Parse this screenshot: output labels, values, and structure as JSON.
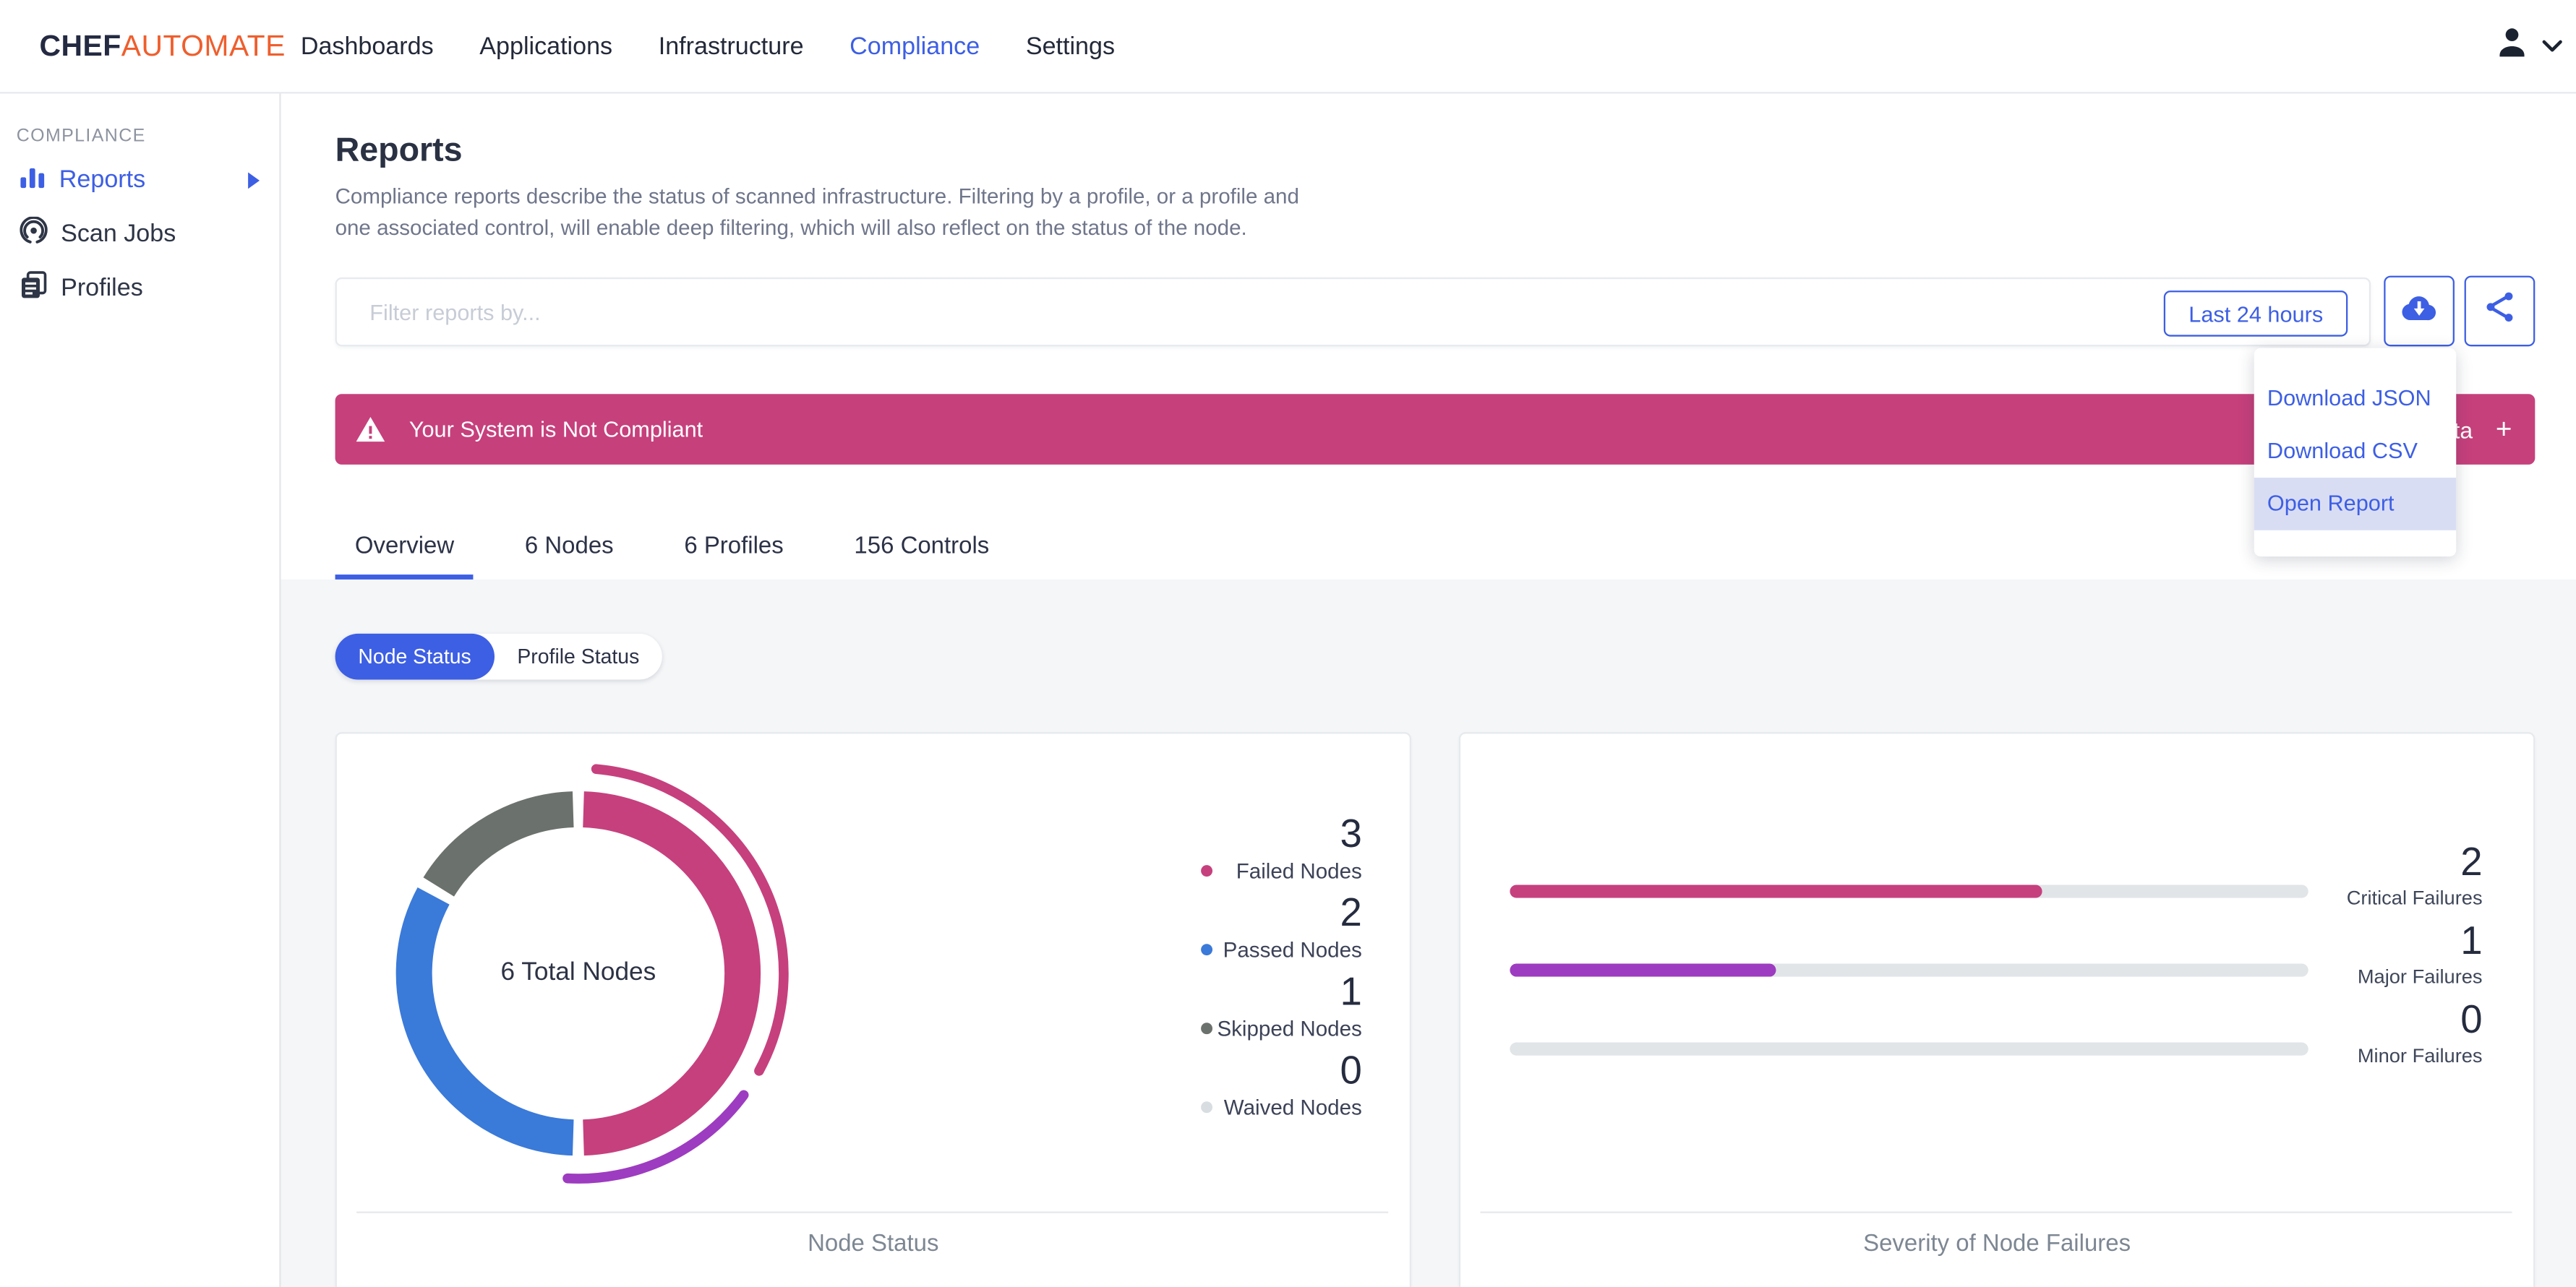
{
  "app": {
    "brand_primary": "CHEF",
    "brand_secondary": "AUTOMATE"
  },
  "nav": {
    "items": [
      {
        "label": "Dashboards",
        "active": false
      },
      {
        "label": "Applications",
        "active": false
      },
      {
        "label": "Infrastructure",
        "active": false
      },
      {
        "label": "Compliance",
        "active": true
      },
      {
        "label": "Settings",
        "active": false
      }
    ]
  },
  "sidebar": {
    "section_label": "COMPLIANCE",
    "items": [
      {
        "label": "Reports",
        "active": true
      },
      {
        "label": "Scan Jobs",
        "active": false
      },
      {
        "label": "Profiles",
        "active": false
      }
    ]
  },
  "page": {
    "title": "Reports",
    "description_line1": "Compliance reports describe the status of scanned infrastructure. Filtering by a profile, or a profile and",
    "description_line2": "one associated control, will enable deep filtering, which will also reflect on the status of the node."
  },
  "filter": {
    "placeholder": "Filter reports by...",
    "time_range_label": "Last 24 hours"
  },
  "banner": {
    "message": "Your System is Not Compliant",
    "right_fragment": "ta",
    "expand_glyph": "+"
  },
  "download_menu": {
    "items": [
      {
        "label": "Download JSON",
        "active": false
      },
      {
        "label": "Download CSV",
        "active": false
      },
      {
        "label": "Open Report",
        "active": true
      }
    ]
  },
  "tabs": [
    {
      "label": "Overview",
      "active": true
    },
    {
      "label": "6 Nodes",
      "active": false
    },
    {
      "label": "6 Profiles",
      "active": false
    },
    {
      "label": "156 Controls",
      "active": false
    }
  ],
  "toggle": {
    "options": [
      {
        "label": "Node Status",
        "active": true
      },
      {
        "label": "Profile Status",
        "active": false
      }
    ]
  },
  "colors": {
    "accent_blue": "#3d5fe4",
    "brand_orange": "#ee5f2e",
    "banner_pink": "#c6407c",
    "page_gray": "#f4f6f8"
  },
  "chart_data": [
    {
      "type": "pie",
      "subtype": "donut",
      "title": "Node Status",
      "center_label": "6 Total Nodes",
      "total": 6,
      "legend_position": "right",
      "segments": [
        {
          "label": "Failed Nodes",
          "value": 3,
          "color": "#c6407e"
        },
        {
          "label": "Passed Nodes",
          "value": 2,
          "color": "#3a7ad9"
        },
        {
          "label": "Skipped Nodes",
          "value": 1,
          "color": "#6b716d"
        },
        {
          "label": "Waived Nodes",
          "value": 0,
          "color": "#d8dde1"
        }
      ]
    },
    {
      "type": "bar",
      "subtype": "horizontal-progress",
      "title": "Severity of Node Failures",
      "max": 3,
      "bars": [
        {
          "label": "Critical Failures",
          "value": 2,
          "color": "#c6407e"
        },
        {
          "label": "Major Failures",
          "value": 1,
          "color": "#9d3cc0"
        },
        {
          "label": "Minor Failures",
          "value": 0,
          "color": "#e2e5e8"
        }
      ]
    }
  ]
}
